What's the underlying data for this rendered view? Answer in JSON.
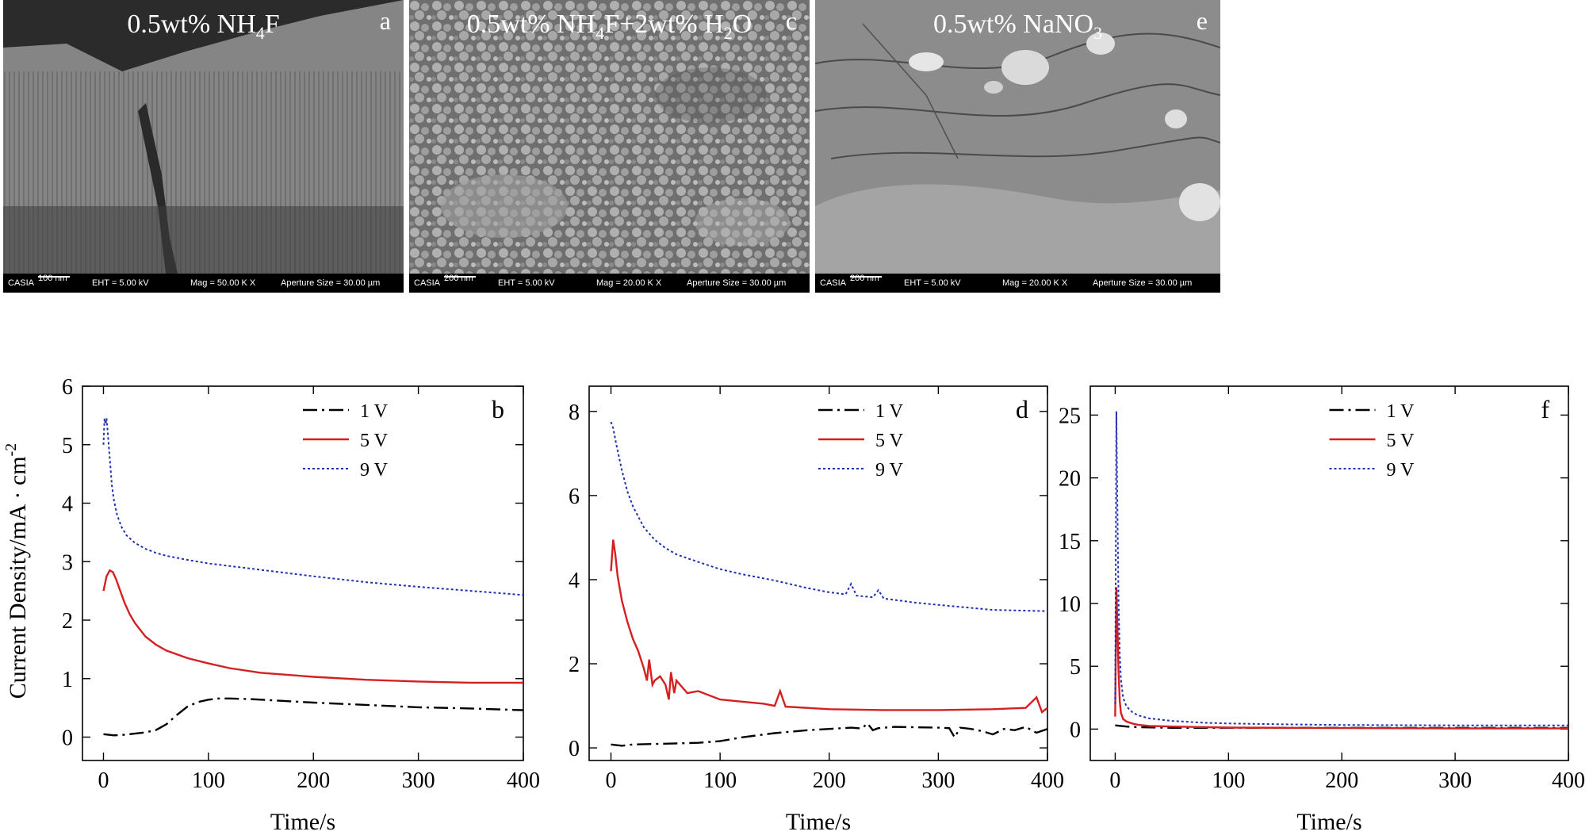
{
  "panels": [
    {
      "sem": {
        "label_main": "0.5wt% NH",
        "label_sub": "4",
        "label_end": "F",
        "letter": "a",
        "databar": {
          "brand": "CASIA",
          "scale": "100 nm",
          "eht": "EHT = 5.00 kV",
          "mag": "Mag = 50.00 K X",
          "aperture": "Aperture Size = 30.00 µm"
        }
      }
    },
    {
      "sem": {
        "label_main": "0.5wt% NH",
        "label_sub": "4",
        "label_end": "F+2wt% H",
        "label_sub2": "2",
        "label_end2": "O",
        "letter": "c",
        "databar": {
          "brand": "CASIA",
          "scale": "200 nm",
          "eht": "EHT = 5.00 kV",
          "mag": "Mag = 20.00 K X",
          "aperture": "Aperture Size = 30.00 µm"
        }
      }
    },
    {
      "sem": {
        "label_main": "0.5wt% NaNO",
        "label_sub": "3",
        "label_end": "",
        "letter": "e",
        "databar": {
          "brand": "CASIA",
          "scale": "200 nm",
          "eht": "EHT = 5.00 kV",
          "mag": "Mag = 20.00 K X",
          "aperture": "Aperture Size = 30.00 µm"
        }
      }
    }
  ],
  "ylabel_main": "Current Density/mA · cm",
  "ylabel_sup": "-2",
  "chart_data": [
    {
      "type": "line",
      "letter": "b",
      "xlabel": "Time/s",
      "xlim": [
        -20,
        400
      ],
      "ylim": [
        -0.4,
        6.0
      ],
      "xticks": [
        0,
        100,
        200,
        300,
        400
      ],
      "yticks": [
        0,
        1,
        2,
        3,
        4,
        5,
        6
      ],
      "legend_position": "top-right",
      "series": [
        {
          "name": "1 V",
          "color": "#000000",
          "dash": "18 6 3 6",
          "x": [
            0,
            10,
            20,
            30,
            40,
            50,
            60,
            70,
            80,
            90,
            100,
            110,
            120,
            140,
            160,
            200,
            250,
            300,
            350,
            400
          ],
          "y": [
            0.05,
            0.03,
            0.04,
            0.06,
            0.08,
            0.12,
            0.22,
            0.38,
            0.52,
            0.6,
            0.64,
            0.66,
            0.66,
            0.65,
            0.63,
            0.59,
            0.55,
            0.51,
            0.49,
            0.46
          ]
        },
        {
          "name": "5 V",
          "color": "#d42020",
          "dash": "",
          "x": [
            0,
            3,
            6,
            9,
            12,
            15,
            20,
            25,
            30,
            40,
            50,
            60,
            80,
            100,
            120,
            150,
            200,
            250,
            300,
            350,
            400
          ],
          "y": [
            2.5,
            2.75,
            2.85,
            2.82,
            2.7,
            2.55,
            2.3,
            2.1,
            1.95,
            1.72,
            1.58,
            1.48,
            1.35,
            1.26,
            1.18,
            1.1,
            1.03,
            0.98,
            0.95,
            0.93,
            0.93
          ]
        },
        {
          "name": "9 V",
          "color": "#2030b0",
          "dash": "3 3",
          "x": [
            0,
            1,
            2,
            3,
            5,
            8,
            10,
            13,
            17,
            22,
            30,
            40,
            50,
            60,
            80,
            100,
            150,
            200,
            250,
            300,
            350,
            400
          ],
          "y": [
            5.0,
            5.45,
            5.35,
            5.45,
            5.0,
            4.3,
            4.05,
            3.8,
            3.6,
            3.45,
            3.32,
            3.22,
            3.15,
            3.1,
            3.03,
            2.97,
            2.86,
            2.75,
            2.65,
            2.57,
            2.5,
            2.43
          ]
        }
      ]
    },
    {
      "type": "line",
      "letter": "d",
      "xlabel": "Time/s",
      "xlim": [
        -20,
        400
      ],
      "ylim": [
        -0.3,
        8.6
      ],
      "xticks": [
        0,
        100,
        200,
        300,
        400
      ],
      "yticks": [
        0,
        2,
        4,
        6,
        8
      ],
      "legend_position": "top-right",
      "series": [
        {
          "name": "1 V",
          "color": "#000000",
          "dash": "18 6 3 6",
          "x": [
            0,
            10,
            20,
            50,
            80,
            100,
            120,
            150,
            180,
            200,
            220,
            230,
            235,
            240,
            245,
            260,
            280,
            300,
            310,
            315,
            320,
            330,
            340,
            350,
            360,
            370,
            380,
            390,
            400
          ],
          "y": [
            0.08,
            0.05,
            0.08,
            0.1,
            0.12,
            0.16,
            0.25,
            0.35,
            0.42,
            0.45,
            0.48,
            0.46,
            0.58,
            0.42,
            0.47,
            0.5,
            0.49,
            0.48,
            0.47,
            0.25,
            0.48,
            0.45,
            0.4,
            0.32,
            0.45,
            0.42,
            0.5,
            0.36,
            0.45
          ]
        },
        {
          "name": "5 V",
          "color": "#d42020",
          "dash": "",
          "x": [
            0,
            2,
            4,
            6,
            8,
            10,
            15,
            20,
            25,
            30,
            33,
            35,
            38,
            40,
            45,
            50,
            53,
            55,
            58,
            60,
            70,
            80,
            100,
            120,
            140,
            150,
            155,
            160,
            180,
            200,
            250,
            300,
            350,
            380,
            390,
            395,
            400
          ],
          "y": [
            4.2,
            4.95,
            4.6,
            4.1,
            3.8,
            3.5,
            3.0,
            2.6,
            2.3,
            1.9,
            1.6,
            2.1,
            1.5,
            1.6,
            1.7,
            1.5,
            1.15,
            1.8,
            1.3,
            1.6,
            1.3,
            1.35,
            1.15,
            1.1,
            1.05,
            1.0,
            1.35,
            0.98,
            0.95,
            0.92,
            0.9,
            0.9,
            0.92,
            0.95,
            1.2,
            0.85,
            0.95
          ]
        },
        {
          "name": "9 V",
          "color": "#2030b0",
          "dash": "3 3",
          "x": [
            0,
            2,
            5,
            10,
            15,
            20,
            30,
            40,
            50,
            60,
            80,
            100,
            120,
            150,
            180,
            200,
            215,
            220,
            225,
            240,
            245,
            250,
            280,
            300,
            350,
            400
          ],
          "y": [
            7.75,
            7.6,
            7.2,
            6.6,
            6.1,
            5.75,
            5.25,
            4.95,
            4.75,
            4.6,
            4.42,
            4.25,
            4.13,
            3.98,
            3.8,
            3.7,
            3.65,
            3.9,
            3.62,
            3.58,
            3.75,
            3.55,
            3.45,
            3.4,
            3.28,
            3.25
          ]
        }
      ]
    },
    {
      "type": "line",
      "letter": "f",
      "xlabel": "Time/s",
      "xlim": [
        -22,
        400
      ],
      "ylim": [
        -2.5,
        27.3
      ],
      "xticks": [
        0,
        100,
        200,
        300,
        400
      ],
      "yticks": [
        0,
        5,
        10,
        15,
        20,
        25
      ],
      "legend_position": "top-right",
      "series": [
        {
          "name": "1 V",
          "color": "#000000",
          "dash": "18 6 3 6",
          "x": [
            0,
            10,
            20,
            50,
            100,
            200,
            300,
            400
          ],
          "y": [
            0.3,
            0.2,
            0.15,
            0.1,
            0.1,
            0.1,
            0.1,
            0.1
          ]
        },
        {
          "name": "5 V",
          "color": "#d42020",
          "dash": "",
          "x": [
            0,
            1,
            2,
            3,
            4,
            5,
            7,
            10,
            15,
            20,
            30,
            50,
            100,
            200,
            300,
            400
          ],
          "y": [
            1.0,
            11.3,
            8.0,
            4.5,
            2.2,
            1.3,
            0.8,
            0.6,
            0.45,
            0.35,
            0.25,
            0.2,
            0.12,
            0.08,
            0.06,
            0.06
          ]
        },
        {
          "name": "9 V",
          "color": "#2030b0",
          "dash": "3 3",
          "x": [
            0,
            1,
            2,
            3,
            4,
            5,
            7,
            10,
            15,
            20,
            30,
            50,
            80,
            100,
            150,
            200,
            300,
            400
          ],
          "y": [
            2.0,
            25.3,
            17.0,
            10.0,
            6.0,
            4.0,
            2.5,
            1.8,
            1.35,
            1.1,
            0.85,
            0.65,
            0.5,
            0.45,
            0.38,
            0.33,
            0.3,
            0.3
          ]
        }
      ]
    }
  ]
}
